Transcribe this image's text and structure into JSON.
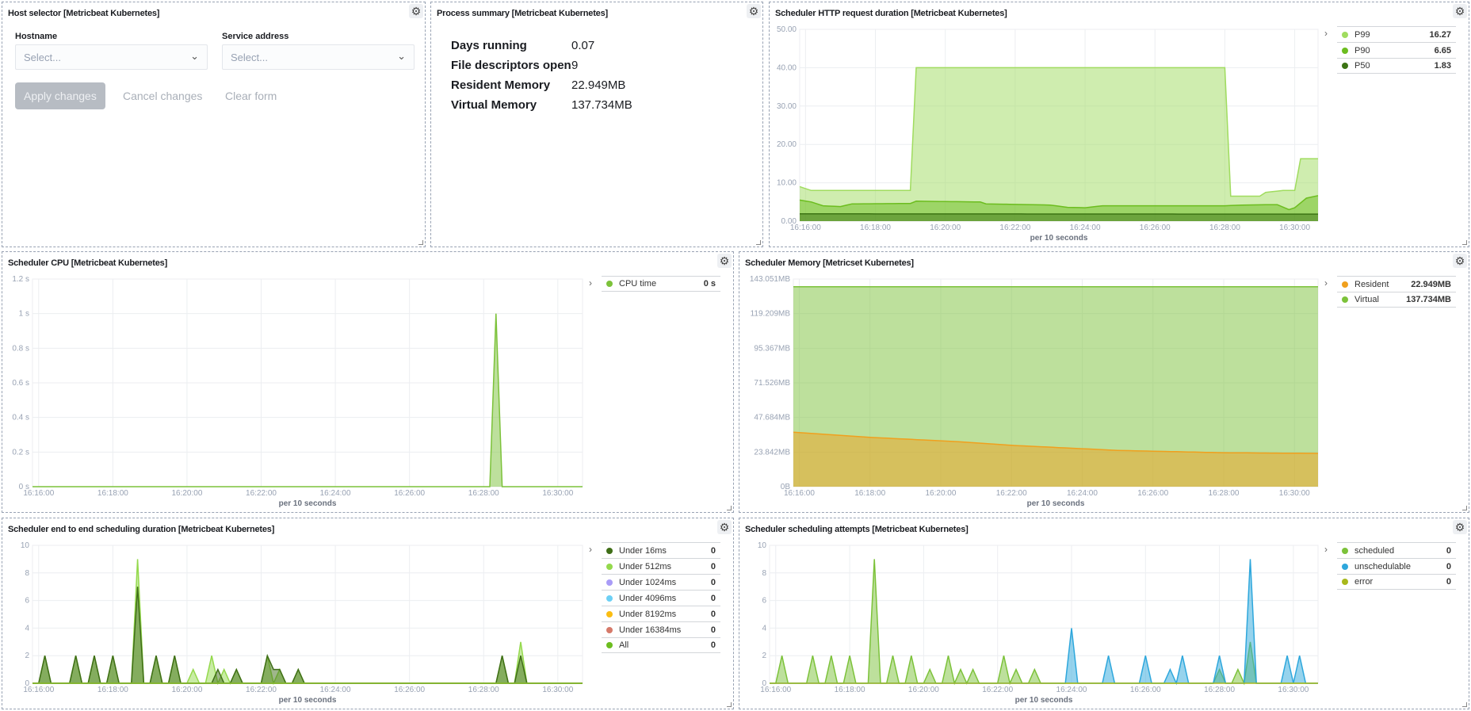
{
  "host_selector": {
    "title": "Host selector [Metricbeat Kubernetes]",
    "hostname_label": "Hostname",
    "hostname_placeholder": "Select...",
    "service_label": "Service address",
    "service_placeholder": "Select...",
    "apply": "Apply changes",
    "cancel": "Cancel changes",
    "clear": "Clear form"
  },
  "process_summary": {
    "title": "Process summary [Metricbeat Kubernetes]",
    "rows": [
      {
        "label": "Days running",
        "value": "0.07"
      },
      {
        "label": "File descriptors open",
        "value": "9"
      },
      {
        "label": "Resident Memory",
        "value": "22.949MB"
      },
      {
        "label": "Virtual Memory",
        "value": "137.734MB"
      }
    ]
  },
  "icons": {
    "panel_options": "gear-icon",
    "legend_toggle": "chevron-right-icon",
    "select": "chevron-down-icon"
  },
  "chart_data": [
    {
      "id": "http",
      "title": "Scheduler HTTP request duration [Metricbeat Kubernetes]",
      "type": "area",
      "xlabel": "per 10 seconds",
      "xlim": [
        "16:15:50",
        "16:30:40"
      ],
      "xticks": [
        "16:16:00",
        "16:18:00",
        "16:20:00",
        "16:22:00",
        "16:24:00",
        "16:26:00",
        "16:28:00",
        "16:30:00"
      ],
      "ylim": [
        0,
        50
      ],
      "yticks": [
        0,
        10,
        20,
        30,
        40,
        50
      ],
      "yticklabels": [
        "0.00",
        "10.00",
        "20.00",
        "30.00",
        "40.00",
        "50.00"
      ],
      "grid": true,
      "legend": "right",
      "series": [
        {
          "name": "P99",
          "value": "16.27",
          "color": "#a0dc5f",
          "points": [
            [
              "16:15:50",
              9
            ],
            [
              "16:16:10",
              8
            ],
            [
              "16:19:00",
              8
            ],
            [
              "16:19:10",
              40
            ],
            [
              "16:28:00",
              40
            ],
            [
              "16:28:10",
              6.5
            ],
            [
              "16:29:00",
              6.5
            ],
            [
              "16:29:10",
              7.5
            ],
            [
              "16:29:40",
              8
            ],
            [
              "16:30:00",
              8
            ],
            [
              "16:30:10",
              16.27
            ],
            [
              "16:30:40",
              16.27
            ]
          ]
        },
        {
          "name": "P90",
          "value": "6.65",
          "color": "#6cbd1f",
          "points": [
            [
              "16:15:50",
              5.5
            ],
            [
              "16:16:10",
              5
            ],
            [
              "16:16:30",
              4
            ],
            [
              "16:17:00",
              3.8
            ],
            [
              "16:17:20",
              4.5
            ],
            [
              "16:19:00",
              4.6
            ],
            [
              "16:19:10",
              5.2
            ],
            [
              "16:21:00",
              5
            ],
            [
              "16:21:10",
              4.5
            ],
            [
              "16:23:00",
              4.2
            ],
            [
              "16:23:30",
              3.6
            ],
            [
              "16:24:00",
              3.5
            ],
            [
              "16:24:30",
              4
            ],
            [
              "16:28:00",
              4
            ],
            [
              "16:28:30",
              4.2
            ],
            [
              "16:29:30",
              4.3
            ],
            [
              "16:29:50",
              3
            ],
            [
              "16:30:00",
              3.5
            ],
            [
              "16:30:20",
              6
            ],
            [
              "16:30:40",
              6.65
            ]
          ]
        },
        {
          "name": "P50",
          "value": "1.83",
          "color": "#3c7414",
          "points": [
            [
              "16:15:50",
              1.9
            ],
            [
              "16:30:40",
              1.83
            ]
          ]
        }
      ]
    },
    {
      "id": "cpu",
      "title": "Scheduler CPU [Metricbeat Kubernetes]",
      "type": "area",
      "xlabel": "per 10 seconds",
      "xlim": [
        "16:15:50",
        "16:30:40"
      ],
      "xticks": [
        "16:16:00",
        "16:18:00",
        "16:20:00",
        "16:22:00",
        "16:24:00",
        "16:26:00",
        "16:28:00",
        "16:30:00"
      ],
      "ylim": [
        0,
        1.2
      ],
      "yticks": [
        0,
        0.2,
        0.4,
        0.6,
        0.8,
        1,
        1.2
      ],
      "yticklabels": [
        "0 s",
        "0.2 s",
        "0.4 s",
        "0.6 s",
        "0.8 s",
        "1 s",
        "1.2 s"
      ],
      "grid": true,
      "legend": "right",
      "series": [
        {
          "name": "CPU time",
          "value": "0 s",
          "color": "#7cc23a",
          "baseline": 0,
          "points": [
            [
              "16:28:20",
              1
            ]
          ]
        }
      ]
    },
    {
      "id": "mem",
      "title": "Scheduler Memory [Metricset Kubernetes]",
      "type": "area",
      "xlabel": "per 10 seconds",
      "xlim": [
        "16:15:50",
        "16:30:40"
      ],
      "xticks": [
        "16:16:00",
        "16:18:00",
        "16:20:00",
        "16:22:00",
        "16:24:00",
        "16:26:00",
        "16:28:00",
        "16:30:00"
      ],
      "ylim": [
        0,
        143.051
      ],
      "yticks": [
        0,
        23.842,
        47.684,
        71.526,
        95.367,
        119.209,
        143.051
      ],
      "yticklabels": [
        "0B",
        "23.842MB",
        "47.684MB",
        "71.526MB",
        "95.367MB",
        "119.209MB",
        "143.051MB"
      ],
      "grid": true,
      "legend": "right",
      "series": [
        {
          "name": "Resident",
          "value": "22.949MB",
          "color": "#f0a01e",
          "points": [
            [
              "16:15:50",
              37.5
            ],
            [
              "16:18:00",
              34
            ],
            [
              "16:20:30",
              31
            ],
            [
              "16:22:00",
              28.5
            ],
            [
              "16:25:00",
              25
            ],
            [
              "16:28:00",
              23.4
            ],
            [
              "16:30:40",
              22.949
            ]
          ]
        },
        {
          "name": "Virtual",
          "value": "137.734MB",
          "color": "#7cc23a",
          "points": [
            [
              "16:15:50",
              137.734
            ],
            [
              "16:30:40",
              137.734
            ]
          ]
        }
      ]
    },
    {
      "id": "e2e",
      "title": "Scheduler end to end scheduling duration [Metricbeat Kubernetes]",
      "type": "area",
      "xlabel": "per 10 seconds",
      "xlim": [
        "16:15:50",
        "16:30:40"
      ],
      "xticks": [
        "16:16:00",
        "16:18:00",
        "16:20:00",
        "16:22:00",
        "16:24:00",
        "16:26:00",
        "16:28:00",
        "16:30:00"
      ],
      "ylim": [
        0,
        10
      ],
      "yticks": [
        0,
        2,
        4,
        6,
        8,
        10
      ],
      "yticklabels": [
        "0",
        "2",
        "4",
        "6",
        "8",
        "10"
      ],
      "grid": true,
      "legend": "right",
      "series": [
        {
          "name": "Under 16ms",
          "value": "0",
          "color": "#3f6e17",
          "baseline": 0,
          "points": [
            [
              "16:16:10",
              2
            ],
            [
              "16:17:00",
              2
            ],
            [
              "16:17:30",
              2
            ],
            [
              "16:18:00",
              2
            ],
            [
              "16:18:40",
              7
            ],
            [
              "16:19:10",
              2
            ],
            [
              "16:19:40",
              2
            ],
            [
              "16:20:50",
              1
            ],
            [
              "16:21:20",
              1
            ],
            [
              "16:22:10",
              2
            ],
            [
              "16:22:20",
              1
            ],
            [
              "16:22:30",
              1
            ],
            [
              "16:23:00",
              1
            ],
            [
              "16:28:30",
              2
            ],
            [
              "16:29:00",
              2
            ]
          ]
        },
        {
          "name": "Under 512ms",
          "value": "0",
          "color": "#94d94c",
          "baseline": 0,
          "points": [
            [
              "16:16:10",
              2
            ],
            [
              "16:17:00",
              2
            ],
            [
              "16:17:30",
              2
            ],
            [
              "16:18:00",
              2
            ],
            [
              "16:18:40",
              9
            ],
            [
              "16:19:10",
              2
            ],
            [
              "16:19:40",
              2
            ],
            [
              "16:20:10",
              1
            ],
            [
              "16:20:40",
              2
            ],
            [
              "16:21:00",
              1
            ],
            [
              "16:21:20",
              1
            ],
            [
              "16:22:10",
              2
            ],
            [
              "16:22:30",
              1
            ],
            [
              "16:23:00",
              1
            ],
            [
              "16:28:30",
              2
            ],
            [
              "16:29:00",
              3
            ]
          ]
        },
        {
          "name": "Under 1024ms",
          "value": "0",
          "color": "#a99cf7",
          "baseline": 0,
          "points": []
        },
        {
          "name": "Under 4096ms",
          "value": "0",
          "color": "#6dd0f5",
          "baseline": 0,
          "points": []
        },
        {
          "name": "Under 8192ms",
          "value": "0",
          "color": "#fbbd12",
          "baseline": 0,
          "points": []
        },
        {
          "name": "Under 16384ms",
          "value": "0",
          "color": "#d67a6a",
          "baseline": 0,
          "points": []
        },
        {
          "name": "All",
          "value": "0",
          "color": "#6cbd1f",
          "baseline": 0,
          "points": []
        }
      ]
    },
    {
      "id": "att",
      "title": "Scheduler scheduling attempts [Metricbeat Kubernetes]",
      "type": "area",
      "xlabel": "per 10 seconds",
      "xlim": [
        "16:15:50",
        "16:30:40"
      ],
      "xticks": [
        "16:16:00",
        "16:18:00",
        "16:20:00",
        "16:22:00",
        "16:24:00",
        "16:26:00",
        "16:28:00",
        "16:30:00"
      ],
      "ylim": [
        0,
        10
      ],
      "yticks": [
        0,
        2,
        4,
        6,
        8,
        10
      ],
      "yticklabels": [
        "0",
        "2",
        "4",
        "6",
        "8",
        "10"
      ],
      "grid": true,
      "legend": "right",
      "series": [
        {
          "name": "scheduled",
          "value": "0",
          "color": "#7cc23a",
          "baseline": 0,
          "points": [
            [
              "16:16:10",
              2
            ],
            [
              "16:17:00",
              2
            ],
            [
              "16:17:30",
              2
            ],
            [
              "16:18:00",
              2
            ],
            [
              "16:18:40",
              9
            ],
            [
              "16:19:10",
              2
            ],
            [
              "16:19:40",
              2
            ],
            [
              "16:20:10",
              1
            ],
            [
              "16:20:40",
              2
            ],
            [
              "16:21:00",
              1
            ],
            [
              "16:21:20",
              1
            ],
            [
              "16:22:10",
              2
            ],
            [
              "16:22:30",
              1
            ],
            [
              "16:23:00",
              1
            ],
            [
              "16:28:00",
              1
            ],
            [
              "16:28:30",
              1
            ],
            [
              "16:28:50",
              3
            ]
          ]
        },
        {
          "name": "unschedulable",
          "value": "0",
          "color": "#2ea7dc",
          "baseline": 0,
          "points": [
            [
              "16:24:00",
              4
            ],
            [
              "16:25:00",
              2
            ],
            [
              "16:26:00",
              2
            ],
            [
              "16:26:40",
              1
            ],
            [
              "16:27:00",
              2
            ],
            [
              "16:28:00",
              2
            ],
            [
              "16:28:50",
              9
            ],
            [
              "16:29:50",
              2
            ],
            [
              "16:30:10",
              2
            ]
          ]
        },
        {
          "name": "error",
          "value": "0",
          "color": "#a8b81c",
          "baseline": 0,
          "points": []
        }
      ]
    }
  ]
}
